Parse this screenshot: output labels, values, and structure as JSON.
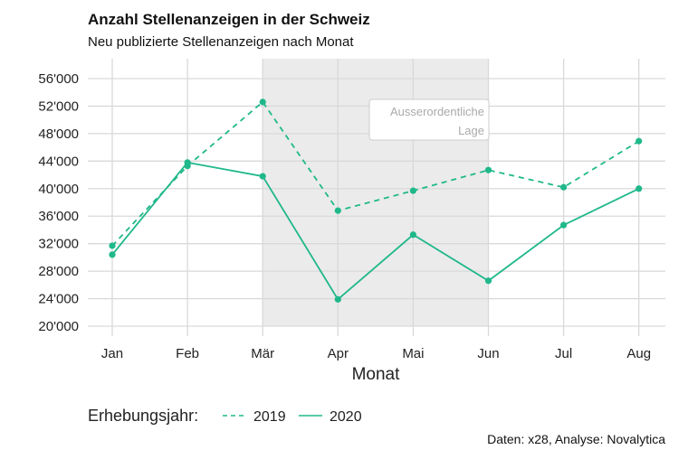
{
  "chart_data": {
    "type": "line",
    "title": "Anzahl Stellenanzeigen in der Schweiz",
    "subtitle": "Neu publizierte Stellenanzeigen nach Monat",
    "xlabel": "Monat",
    "ylabel": "",
    "categories": [
      "Jan",
      "Feb",
      "Mär",
      "Apr",
      "Mai",
      "Jun",
      "Jul",
      "Aug"
    ],
    "yticks": [
      20000,
      24000,
      28000,
      32000,
      36000,
      40000,
      44000,
      48000,
      52000,
      56000
    ],
    "ytick_labels": [
      "20'000",
      "24'000",
      "28'000",
      "32'000",
      "36'000",
      "40'000",
      "44'000",
      "48'000",
      "52'000",
      "56'000"
    ],
    "ylim": [
      20000,
      56000
    ],
    "grid": true,
    "series": [
      {
        "name": "2019",
        "style": "dashed",
        "values": [
          31700,
          43300,
          52600,
          36800,
          39700,
          42700,
          40200,
          46900
        ]
      },
      {
        "name": "2020",
        "style": "solid",
        "values": [
          30400,
          43800,
          41800,
          23900,
          33300,
          26600,
          34700,
          40000
        ]
      }
    ],
    "shaded_region": {
      "from": "Mär",
      "to": "Jun"
    },
    "annotation": [
      "Ausserordentliche",
      "Lage"
    ],
    "legend_title": "Erhebungsjahr:",
    "legend_position": "bottom",
    "caption": "Daten: x28, Analyse: Novalytica",
    "color": "#1fb88a"
  }
}
